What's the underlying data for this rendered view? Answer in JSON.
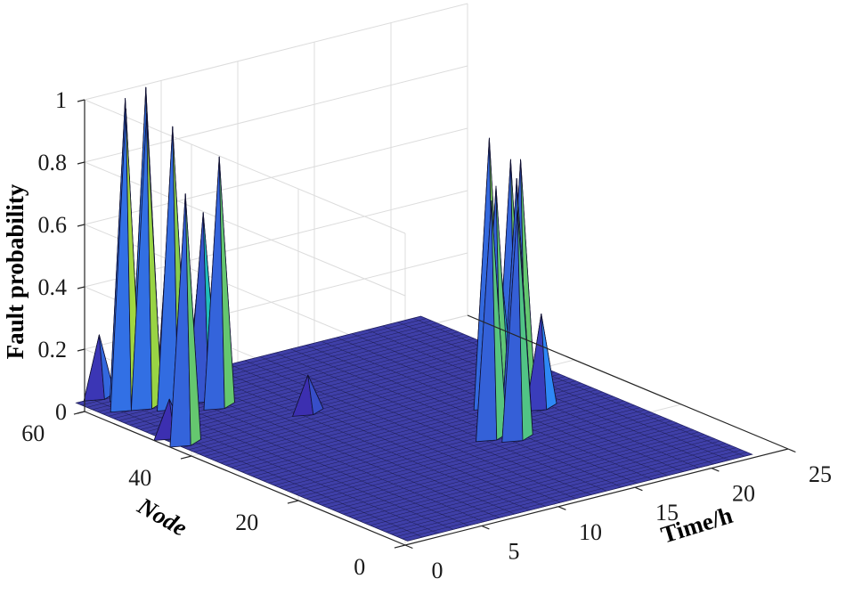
{
  "chart_data": {
    "type": "surface3d",
    "title": "",
    "xlabel": "Time/h",
    "ylabel": "Node",
    "zlabel": "Fault probability",
    "xlim": [
      0,
      25
    ],
    "ylim": [
      0,
      60
    ],
    "zlim": [
      0,
      1
    ],
    "x_ticks": [
      0,
      5,
      10,
      15,
      20,
      25
    ],
    "x_tick_labels": [
      "0",
      "5",
      "10",
      "15",
      "20",
      "25"
    ],
    "y_ticks": [
      0,
      20,
      40,
      60
    ],
    "y_tick_labels": [
      "0",
      "20",
      "40",
      "60"
    ],
    "z_ticks": [
      0,
      0.2,
      0.4,
      0.6,
      0.8,
      1
    ],
    "z_tick_labels": [
      "0",
      "0.2",
      "0.4",
      "0.6",
      "0.8",
      "1"
    ],
    "grid": true,
    "colormap": "parula",
    "surface_base": 0,
    "peaks": [
      {
        "time": 1,
        "node": 44,
        "probability": 0.8
      },
      {
        "time": 1,
        "node": 47,
        "probability": 0.12
      },
      {
        "time": 2,
        "node": 58,
        "probability": 0.96
      },
      {
        "time": 3,
        "node": 61,
        "probability": 0.96
      },
      {
        "time": 3,
        "node": 57,
        "probability": 0.94
      },
      {
        "time": 4,
        "node": 60,
        "probability": 0.99
      },
      {
        "time": 2,
        "node": 63,
        "probability": 0.2
      },
      {
        "time": 4,
        "node": 55,
        "probability": 0.9
      },
      {
        "time": 5,
        "node": 58,
        "probability": 0.76
      },
      {
        "time": 6,
        "node": 52,
        "probability": 0.8
      },
      {
        "time": 6,
        "node": 55,
        "probability": 0.6
      },
      {
        "time": 7,
        "node": 58,
        "probability": 0.5
      },
      {
        "time": 9,
        "node": 44,
        "probability": 0.12
      },
      {
        "time": 14,
        "node": 24,
        "probability": 0.76
      },
      {
        "time": 15,
        "node": 26,
        "probability": 0.78
      },
      {
        "time": 15,
        "node": 22,
        "probability": 0.74
      },
      {
        "time": 16,
        "node": 25,
        "probability": 0.8
      },
      {
        "time": 16,
        "node": 28,
        "probability": 0.5
      },
      {
        "time": 17,
        "node": 29,
        "probability": 0.82
      },
      {
        "time": 17,
        "node": 33,
        "probability": 0.86
      },
      {
        "time": 18,
        "node": 30,
        "probability": 0.8
      },
      {
        "time": 19,
        "node": 29,
        "probability": 0.3
      }
    ]
  }
}
